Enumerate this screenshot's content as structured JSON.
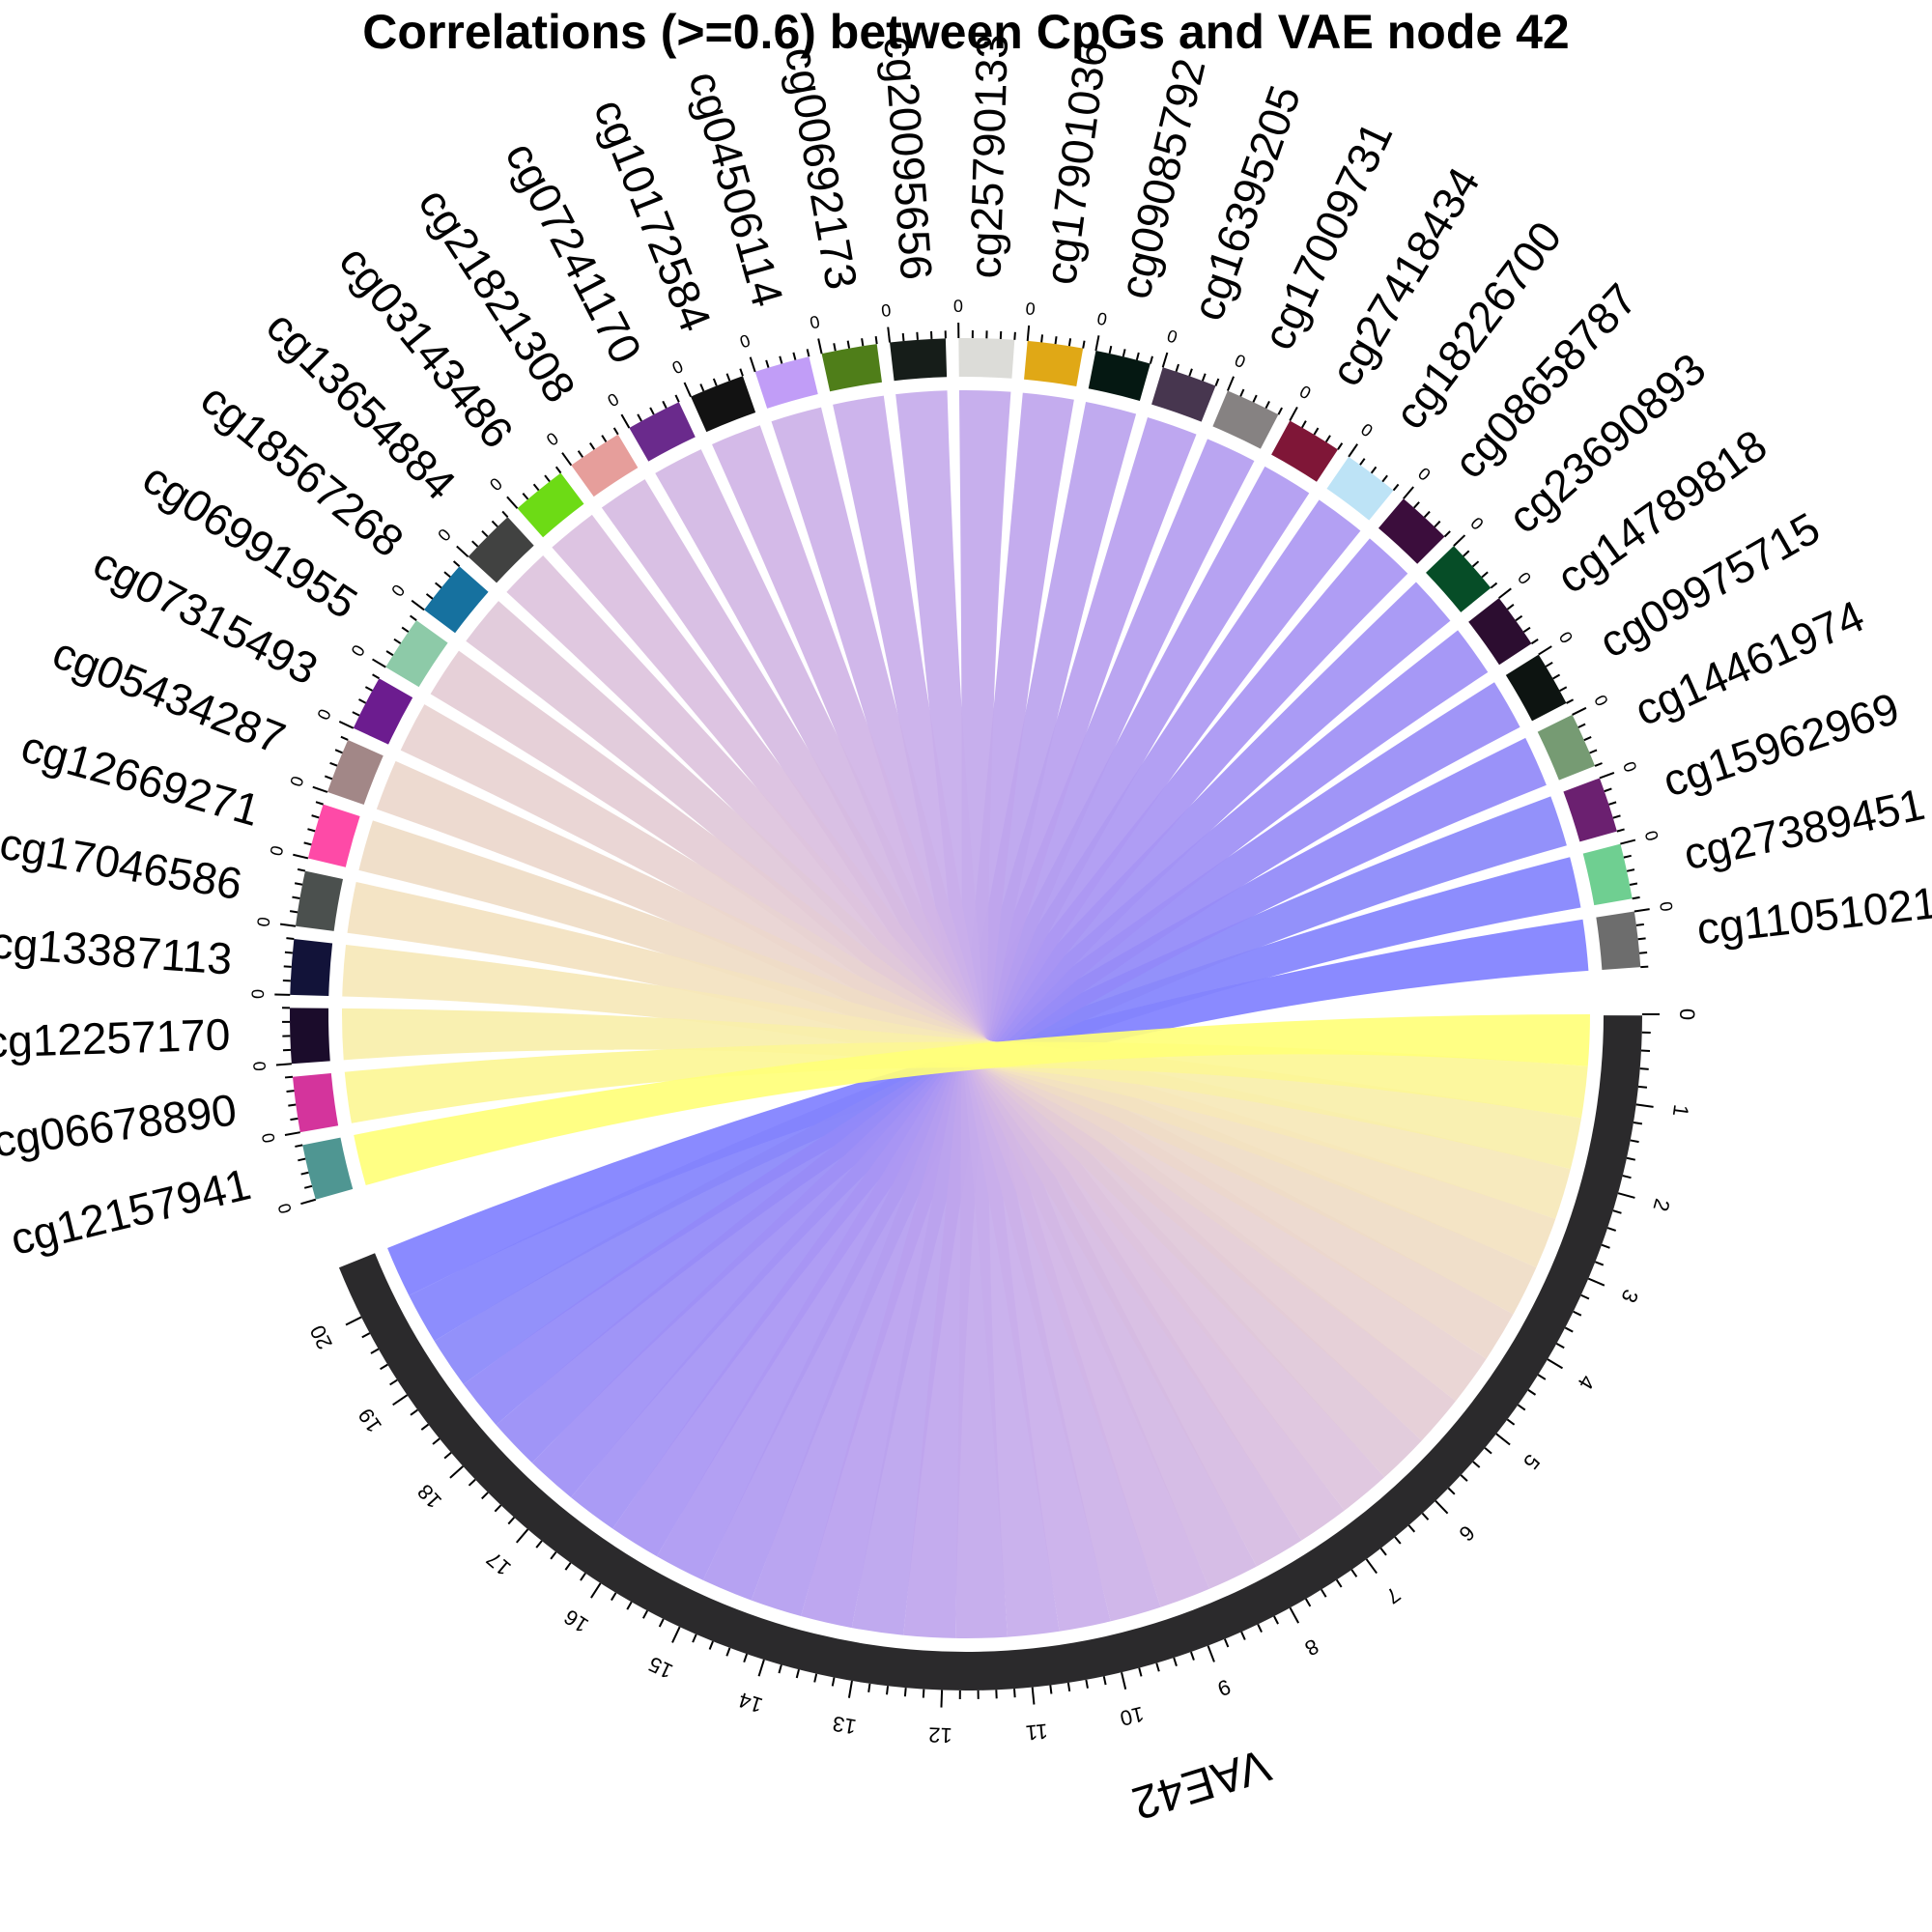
{
  "chart_data": {
    "type": "chord",
    "title": "Correlations (>=0.6) between CpGs and VAE node 42",
    "target": {
      "name": "VAE42",
      "color": "#2b2a2c",
      "axis_range": [
        0,
        20.6
      ],
      "tick_labels": [
        "0",
        "1",
        "2",
        "3",
        "4",
        "5",
        "6",
        "7",
        "8",
        "9",
        "10",
        "11",
        "12",
        "13",
        "14",
        "15",
        "16",
        "17",
        "18",
        "19",
        "20"
      ]
    },
    "sectors": [
      {
        "name": "cg11051021",
        "color": "#6d6d6d",
        "link_color": "#8080ff",
        "correlation": 0.6
      },
      {
        "name": "cg27389451",
        "color": "#6fcf91",
        "link_color": "#8383fd",
        "correlation": 0.6
      },
      {
        "name": "cg15962969",
        "color": "#6b2070",
        "link_color": "#8a88fa",
        "correlation": 0.6
      },
      {
        "name": "cg14461974",
        "color": "#769b73",
        "link_color": "#9189f8",
        "correlation": 0.6
      },
      {
        "name": "cg09975715",
        "color": "#0d1411",
        "link_color": "#988cf6",
        "correlation": 0.6
      },
      {
        "name": "cg14789818",
        "color": "#2c0d30",
        "link_color": "#9e8ff5",
        "correlation": 0.6
      },
      {
        "name": "cg23690893",
        "color": "#064d27",
        "link_color": "#a392f4",
        "correlation": 0.6
      },
      {
        "name": "cg08658787",
        "color": "#3b0d3c",
        "link_color": "#a895f3",
        "correlation": 0.6
      },
      {
        "name": "cg18226700",
        "color": "#bde3f6",
        "link_color": "#ac98f2",
        "correlation": 0.6
      },
      {
        "name": "cg27418434",
        "color": "#7f1637",
        "link_color": "#b09af1",
        "correlation": 0.6
      },
      {
        "name": "cg17009731",
        "color": "#868282",
        "link_color": "#b49df0",
        "correlation": 0.6
      },
      {
        "name": "cg16395205",
        "color": "#47364f",
        "link_color": "#b8a0ef",
        "correlation": 0.6
      },
      {
        "name": "cg09085792",
        "color": "#051812",
        "link_color": "#bba3ee",
        "correlation": 0.6
      },
      {
        "name": "cg17901036",
        "color": "#e0a816",
        "link_color": "#bfa5ed",
        "correlation": 0.6
      },
      {
        "name": "cg25790133",
        "color": "#dcdcd8",
        "link_color": "#c2a8ec",
        "correlation": 0.6
      },
      {
        "name": "cg20095656",
        "color": "#161d19",
        "link_color": "#c6abeb",
        "correlation": 0.6
      },
      {
        "name": "cg00692173",
        "color": "#4f7e19",
        "link_color": "#c9aeea",
        "correlation": 0.6
      },
      {
        "name": "cg04506114",
        "color": "#c19df7",
        "link_color": "#ccb1e8",
        "correlation": 0.6
      },
      {
        "name": "cg10172584",
        "color": "#121212",
        "link_color": "#d0b4e6",
        "correlation": 0.6
      },
      {
        "name": "cg07241170",
        "color": "#6a2a8c",
        "link_color": "#d3b7e4",
        "correlation": 0.6
      },
      {
        "name": "cg21821308",
        "color": "#e69e9b",
        "link_color": "#d6bbe2",
        "correlation": 0.6
      },
      {
        "name": "cg03143486",
        "color": "#6ddb15",
        "link_color": "#dabfe0",
        "correlation": 0.6
      },
      {
        "name": "cg13654884",
        "color": "#414241",
        "link_color": "#ddc3dd",
        "correlation": 0.6
      },
      {
        "name": "cg18567268",
        "color": "#16719f",
        "link_color": "#e0c8d9",
        "correlation": 0.6
      },
      {
        "name": "cg06991955",
        "color": "#8dcaa8",
        "link_color": "#e4ccd5",
        "correlation": 0.6
      },
      {
        "name": "cg07315493",
        "color": "#6c1c8f",
        "link_color": "#e8d2d1",
        "correlation": 0.6
      },
      {
        "name": "cg05434287",
        "color": "#a28787",
        "link_color": "#ecd7cc",
        "correlation": 0.6
      },
      {
        "name": "cg12669271",
        "color": "#fe4aa7",
        "link_color": "#efdcc6",
        "correlation": 0.6
      },
      {
        "name": "cg17046586",
        "color": "#4b504e",
        "link_color": "#f3e2c0",
        "correlation": 0.6
      },
      {
        "name": "cg13387113",
        "color": "#121339",
        "link_color": "#f6e8b8",
        "correlation": 0.6
      },
      {
        "name": "cg12257170",
        "color": "#1b0c2b",
        "link_color": "#f9efaa",
        "correlation": 0.6
      },
      {
        "name": "cg06678890",
        "color": "#d4349c",
        "link_color": "#fcf696",
        "correlation": 0.6
      },
      {
        "name": "cg12157941",
        "color": "#4f9692",
        "link_color": "#ffff7a",
        "correlation": 0.6
      }
    ],
    "sector_tick_label": "0"
  }
}
